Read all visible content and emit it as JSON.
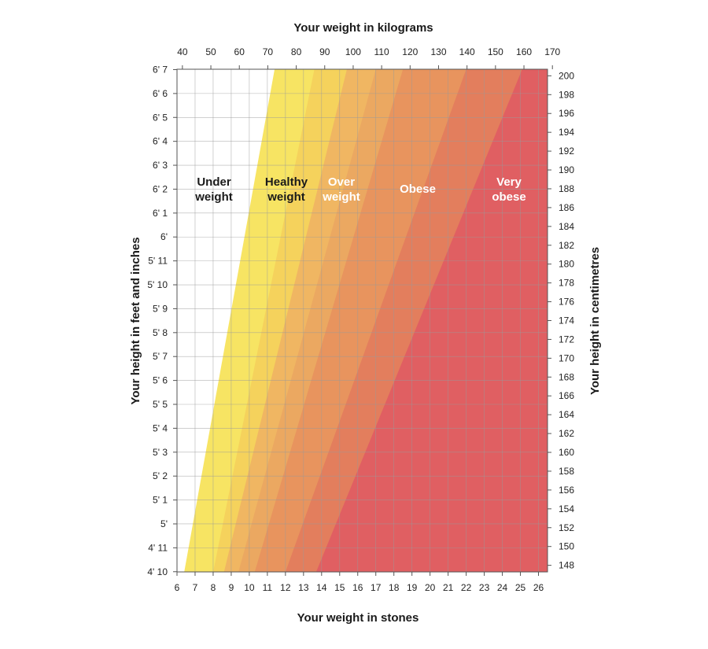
{
  "chart_data": {
    "type": "area",
    "title": "",
    "x_top_label": "Your weight in kilograms",
    "x_bottom_label": "Your weight in stones",
    "y_left_label": "Your height in feet and inches",
    "y_right_label": "Your height in centimetres",
    "x_range_stones": [
      6,
      26.5
    ],
    "y_range_cm": [
      147.3,
      200.7
    ],
    "kg_ticks": [
      "40",
      "50",
      "60",
      "70",
      "80",
      "90",
      "100",
      "110",
      "120",
      "130",
      "140",
      "150",
      "160",
      "170"
    ],
    "kg_tick_values": [
      40,
      50,
      60,
      70,
      80,
      90,
      100,
      110,
      120,
      130,
      140,
      150,
      160,
      170
    ],
    "stone_ticks": [
      "6",
      "7",
      "8",
      "9",
      "10",
      "11",
      "12",
      "13",
      "14",
      "15",
      "16",
      "17",
      "18",
      "19",
      "20",
      "21",
      "22",
      "23",
      "24",
      "25",
      "26"
    ],
    "stone_tick_values": [
      6,
      7,
      8,
      9,
      10,
      11,
      12,
      13,
      14,
      15,
      16,
      17,
      18,
      19,
      20,
      21,
      22,
      23,
      24,
      25,
      26
    ],
    "feet_ticks": [
      "4' 10",
      "4' 11",
      "5'",
      "5' 1",
      "5' 2",
      "5' 3",
      "5' 4",
      "5' 5",
      "5' 6",
      "5' 7",
      "5' 8",
      "5' 9",
      "5' 10",
      "5' 11",
      "6'",
      "6' 1",
      "6' 2",
      "6' 3",
      "6' 4",
      "6' 5",
      "6' 6",
      "6' 7"
    ],
    "feet_tick_inches": [
      58,
      59,
      60,
      61,
      62,
      63,
      64,
      65,
      66,
      67,
      68,
      69,
      70,
      71,
      72,
      73,
      74,
      75,
      76,
      77,
      78,
      79
    ],
    "cm_ticks": [
      "148",
      "150",
      "152",
      "154",
      "156",
      "158",
      "160",
      "162",
      "164",
      "166",
      "168",
      "170",
      "172",
      "174",
      "176",
      "178",
      "180",
      "182",
      "184",
      "186",
      "188",
      "190",
      "192",
      "194",
      "196",
      "198",
      "200"
    ],
    "cm_tick_values": [
      148,
      150,
      152,
      154,
      156,
      158,
      160,
      162,
      164,
      166,
      168,
      170,
      172,
      174,
      176,
      178,
      180,
      182,
      184,
      186,
      188,
      190,
      192,
      194,
      196,
      198,
      200
    ],
    "grid": true,
    "zones": [
      {
        "name": "Under weight",
        "label_lines": [
          "Under",
          "weight"
        ],
        "color": "#ffffff",
        "label_color": "#1a1a1a",
        "bottom_stones": 6.0,
        "top_stones": 6.0
      },
      {
        "name": "Healthy weight",
        "label_lines": [
          "Healthy",
          "weight"
        ],
        "color": "#f7e463",
        "label_color": "#1a1a1a",
        "bottom_stones": 6.4,
        "top_stones": 11.4
      },
      {
        "name": "Over weight",
        "label_lines": [
          "Over",
          "weight"
        ],
        "color": "#f0b662",
        "label_color": "#ffffff",
        "bottom_stones": 8.6,
        "top_stones": 15.4
      },
      {
        "name": "Obese",
        "label_lines": [
          "Obese"
        ],
        "color": "#e8945e",
        "label_color": "#ffffff",
        "bottom_stones": 10.3,
        "top_stones": 18.5
      },
      {
        "name": "Very obese",
        "label_lines": [
          "Very",
          "obese"
        ],
        "color": "#e05f62",
        "label_color": "#ffffff",
        "bottom_stones": 13.7,
        "top_stones": 25.1
      }
    ],
    "healthy_subband": {
      "color": "#f5d25c",
      "bottom_stones": 8.0,
      "top_stones": 13.6
    },
    "over_subband": {
      "color": "#eba861",
      "bottom_stones": 9.4,
      "top_stones": 17.0
    },
    "obese_subband": {
      "color": "#e37e5d",
      "bottom_stones": 12.0,
      "top_stones": 22.0
    }
  }
}
